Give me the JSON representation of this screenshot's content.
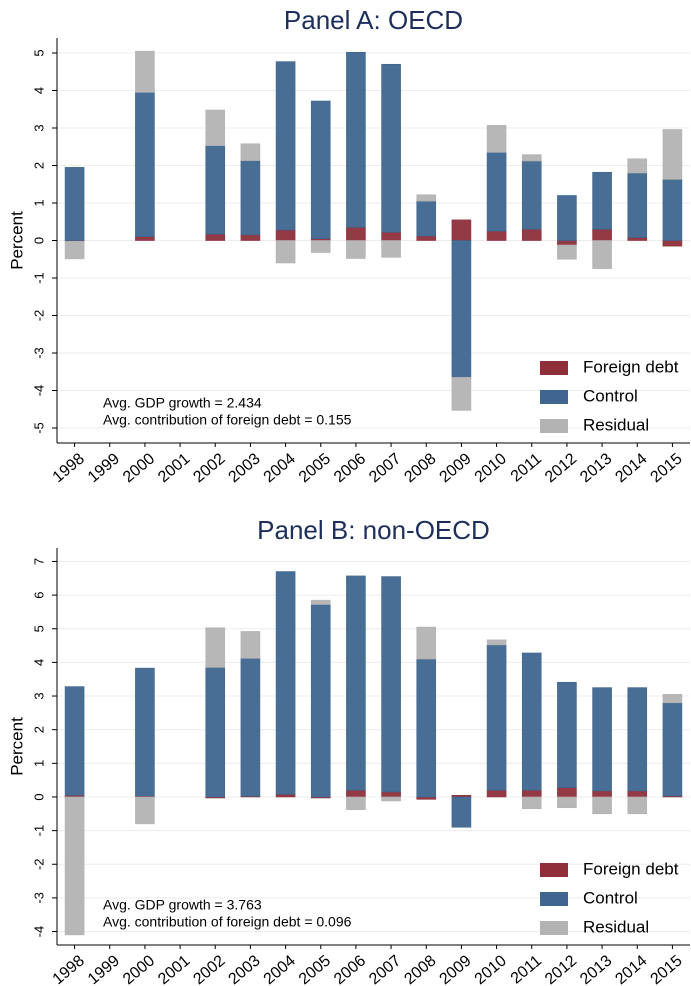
{
  "chart_data": [
    {
      "type": "bar",
      "stacked": true,
      "title": "Panel A: OECD",
      "ylabel": "Percent",
      "categories": [
        "1998",
        "1999",
        "2000",
        "2001",
        "2002",
        "2003",
        "2004",
        "2005",
        "2006",
        "2007",
        "2008",
        "2009",
        "2010",
        "2011",
        "2012",
        "2013",
        "2014",
        "2015"
      ],
      "series": [
        {
          "name": "Foreign debt",
          "color": "#8e2f3a",
          "values": [
            -0.02,
            null,
            0.1,
            null,
            0.17,
            0.15,
            0.28,
            0.05,
            0.35,
            0.22,
            0.12,
            0.55,
            0.25,
            0.3,
            -0.12,
            0.3,
            0.08,
            -0.15
          ]
        },
        {
          "name": "Control",
          "color": "#3f668f",
          "values": [
            1.95,
            null,
            3.85,
            null,
            2.36,
            1.98,
            4.49,
            3.67,
            4.67,
            4.48,
            0.93,
            -3.65,
            2.1,
            1.82,
            1.2,
            1.52,
            1.72,
            1.63
          ]
        },
        {
          "name": "Residual",
          "color": "#b3b3b3",
          "values": [
            -0.47,
            null,
            1.1,
            null,
            0.95,
            0.45,
            -0.6,
            -0.32,
            -0.48,
            -0.45,
            0.17,
            -0.88,
            0.72,
            0.17,
            -0.38,
            -0.75,
            0.38,
            1.33
          ]
        }
      ],
      "ylim": [
        -5.4,
        5.4
      ],
      "yticks": [
        -5,
        -4,
        -3,
        -2,
        -1,
        0,
        1,
        2,
        3,
        4,
        5
      ],
      "grid": true,
      "legend": "lower right",
      "annotations": [
        "Avg. GDP growth = 2.434",
        "Avg. contribution of foreign debt = 0.155"
      ]
    },
    {
      "type": "bar",
      "stacked": true,
      "title": "Panel B: non-OECD",
      "ylabel": "Percent",
      "categories": [
        "1998",
        "1999",
        "2000",
        "2001",
        "2002",
        "2003",
        "2004",
        "2005",
        "2006",
        "2007",
        "2008",
        "2009",
        "2010",
        "2011",
        "2012",
        "2013",
        "2014",
        "2015"
      ],
      "series": [
        {
          "name": "Foreign debt",
          "color": "#8e2f3a",
          "values": [
            0.05,
            null,
            0.03,
            null,
            -0.03,
            0.02,
            0.08,
            -0.03,
            0.2,
            0.15,
            -0.07,
            0.05,
            0.2,
            0.2,
            0.28,
            0.18,
            0.18,
            0.03
          ]
        },
        {
          "name": "Control",
          "color": "#3f668f",
          "values": [
            3.23,
            null,
            3.8,
            null,
            3.85,
            4.1,
            6.62,
            5.72,
            6.37,
            6.4,
            4.1,
            -0.9,
            4.32,
            4.08,
            3.13,
            3.07,
            3.07,
            2.77
          ]
        },
        {
          "name": "Residual",
          "color": "#b3b3b3",
          "values": [
            -4.1,
            null,
            -0.8,
            null,
            1.18,
            0.8,
            0,
            0.13,
            -0.38,
            -0.12,
            0.95,
            0,
            0.15,
            -0.35,
            -0.32,
            -0.5,
            -0.5,
            0.25
          ]
        }
      ],
      "ylim": [
        -4.4,
        7.4
      ],
      "yticks": [
        -4,
        -3,
        -2,
        -1,
        0,
        1,
        2,
        3,
        4,
        5,
        6,
        7
      ],
      "grid": true,
      "legend": "lower right",
      "annotations": [
        "Avg. GDP growth = 3.763",
        "Avg. contribution of foreign debt = 0.096"
      ]
    }
  ]
}
